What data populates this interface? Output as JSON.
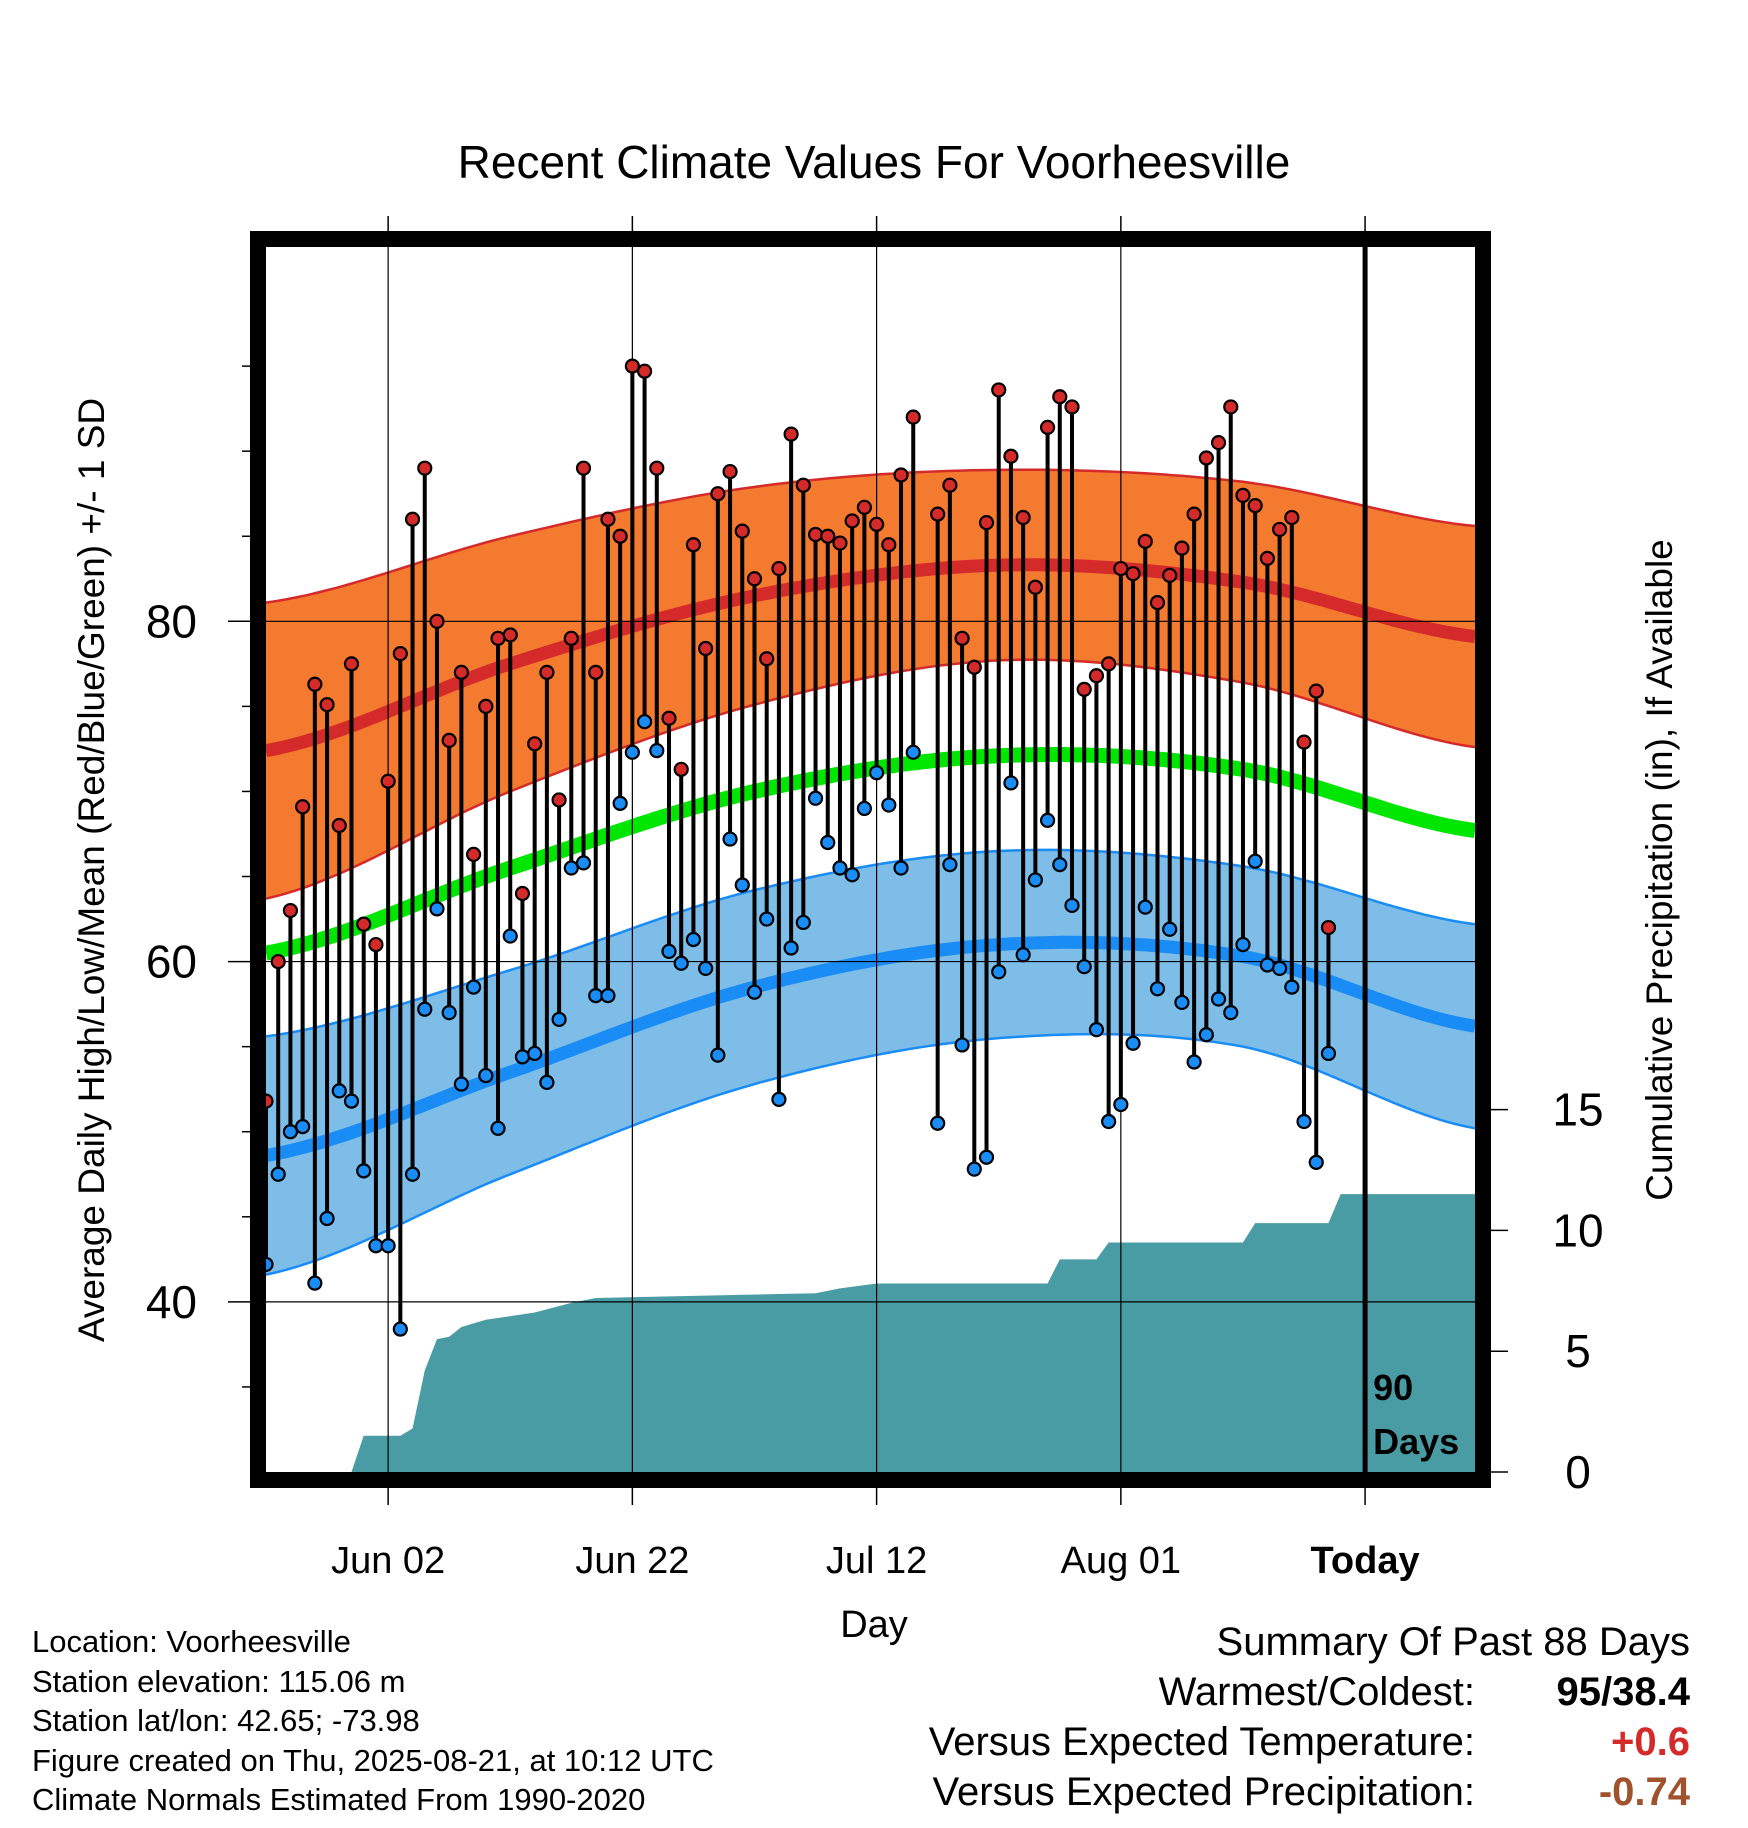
{
  "chart_data": {
    "type": "line",
    "title": "Recent Climate Values For Voorheesville",
    "xlabel": "Day",
    "ylabel": "Average Daily High/Low/Mean (Red/Blue/Green) +/- 1 SD",
    "y2label": "Cumulative Precipitation (in), If Available",
    "x_ticks": [
      {
        "date": "2025-06-02",
        "label": "Jun 02"
      },
      {
        "date": "2025-06-22",
        "label": "Jun 22"
      },
      {
        "date": "2025-07-12",
        "label": "Jul 12"
      },
      {
        "date": "2025-08-01",
        "label": "Aug 01"
      },
      {
        "date": "2025-08-21",
        "label": "Today"
      }
    ],
    "xlim": [
      "2025-05-23",
      "2025-08-30"
    ],
    "ylim": [
      30,
      102
    ],
    "y_ticks": [
      40,
      60,
      80
    ],
    "y2_ticks": [
      0,
      5,
      10,
      15
    ],
    "y2lim": [
      0,
      50.7
    ],
    "today_date": "2025-08-21",
    "window_label": "90 Days",
    "grid": true,
    "colors": {
      "high_band": "#f47a2f",
      "high_mean": "#d42a2a",
      "low_band": "#7dbde8",
      "low_mean": "#1a8cf5",
      "mean_line": "#00e600",
      "precip": "#4a9ca4",
      "high_dot": "#d42a2a",
      "low_dot": "#1a8cf5"
    },
    "normals": {
      "dates": [
        "2025-05-23",
        "2025-06-12",
        "2025-07-02",
        "2025-07-22",
        "2025-08-11",
        "2025-08-30"
      ],
      "high_mean": [
        72.4,
        77.5,
        81.5,
        83.3,
        82.3,
        79.1
      ],
      "high_sd": [
        8.7,
        7.5,
        6.4,
        5.6,
        5.9,
        6.5
      ],
      "low_mean": [
        48.6,
        53.5,
        58.5,
        61.0,
        60.3,
        56.2
      ],
      "low_sd": [
        7.0,
        6.0,
        5.7,
        5.5,
        5.3,
        6.0
      ],
      "mean": [
        60.5,
        65.5,
        70.0,
        72.1,
        71.3,
        67.7
      ]
    },
    "series": [
      {
        "name": "High",
        "dates": [
          "2025-05-23",
          "2025-05-24",
          "2025-05-25",
          "2025-05-26",
          "2025-05-27",
          "2025-05-28",
          "2025-05-29",
          "2025-05-30",
          "2025-05-31",
          "2025-06-01",
          "2025-06-02",
          "2025-06-03",
          "2025-06-04",
          "2025-06-05",
          "2025-06-06",
          "2025-06-07",
          "2025-06-08",
          "2025-06-09",
          "2025-06-10",
          "2025-06-11",
          "2025-06-12",
          "2025-06-13",
          "2025-06-14",
          "2025-06-15",
          "2025-06-16",
          "2025-06-17",
          "2025-06-18",
          "2025-06-19",
          "2025-06-20",
          "2025-06-21",
          "2025-06-22",
          "2025-06-23",
          "2025-06-24",
          "2025-06-25",
          "2025-06-26",
          "2025-06-27",
          "2025-06-28",
          "2025-06-29",
          "2025-06-30",
          "2025-07-01",
          "2025-07-02",
          "2025-07-03",
          "2025-07-04",
          "2025-07-05",
          "2025-07-06",
          "2025-07-07",
          "2025-07-08",
          "2025-07-09",
          "2025-07-10",
          "2025-07-11",
          "2025-07-12",
          "2025-07-13",
          "2025-07-14",
          "2025-07-15",
          "2025-07-17",
          "2025-07-18",
          "2025-07-19",
          "2025-07-20",
          "2025-07-21",
          "2025-07-22",
          "2025-07-23",
          "2025-07-24",
          "2025-07-25",
          "2025-07-26",
          "2025-07-27",
          "2025-07-28",
          "2025-07-29",
          "2025-07-30",
          "2025-07-31",
          "2025-08-01",
          "2025-08-02",
          "2025-08-03",
          "2025-08-04",
          "2025-08-05",
          "2025-08-06",
          "2025-08-07",
          "2025-08-08",
          "2025-08-09",
          "2025-08-10",
          "2025-08-11",
          "2025-08-12",
          "2025-08-13",
          "2025-08-14",
          "2025-08-15",
          "2025-08-16",
          "2025-08-17",
          "2025-08-18",
          "2025-08-19",
          "2025-08-20"
        ],
        "values": [
          51.8,
          60.0,
          63.0,
          69.1,
          76.3,
          75.1,
          68.0,
          77.5,
          62.2,
          61.0,
          70.6,
          78.1,
          86.0,
          89.0,
          80.0,
          73.0,
          77.0,
          66.3,
          75.0,
          79.0,
          79.2,
          64.0,
          72.8,
          77.0,
          69.5,
          79.0,
          89.0,
          77.0,
          86.0,
          85.0,
          95.0,
          94.7,
          89.0,
          74.3,
          71.3,
          84.5,
          78.4,
          87.5,
          88.8,
          85.3,
          82.5,
          77.8,
          83.1,
          91.0,
          88.0,
          85.1,
          85.0,
          84.6,
          85.9,
          86.7,
          85.7,
          84.5,
          88.6,
          92.0,
          86.3,
          88.0,
          79.0,
          77.3,
          85.8,
          93.6,
          89.7,
          86.1,
          82.0,
          91.4,
          93.2,
          92.6,
          76.0,
          76.8,
          77.5,
          83.1,
          82.8,
          84.7,
          81.1,
          82.7,
          84.3,
          86.3,
          89.6,
          90.5,
          92.6,
          87.4,
          86.8,
          83.7,
          85.4,
          86.1,
          72.9,
          75.9,
          62.0,
          null,
          null
        ]
      },
      {
        "name": "Low",
        "dates": [
          "2025-05-23",
          "2025-05-24",
          "2025-05-25",
          "2025-05-26",
          "2025-05-27",
          "2025-05-28",
          "2025-05-29",
          "2025-05-30",
          "2025-05-31",
          "2025-06-01",
          "2025-06-02",
          "2025-06-03",
          "2025-06-04",
          "2025-06-05",
          "2025-06-06",
          "2025-06-07",
          "2025-06-08",
          "2025-06-09",
          "2025-06-10",
          "2025-06-11",
          "2025-06-12",
          "2025-06-13",
          "2025-06-14",
          "2025-06-15",
          "2025-06-16",
          "2025-06-17",
          "2025-06-18",
          "2025-06-19",
          "2025-06-20",
          "2025-06-21",
          "2025-06-22",
          "2025-06-23",
          "2025-06-24",
          "2025-06-25",
          "2025-06-26",
          "2025-06-27",
          "2025-06-28",
          "2025-06-29",
          "2025-06-30",
          "2025-07-01",
          "2025-07-02",
          "2025-07-03",
          "2025-07-04",
          "2025-07-05",
          "2025-07-06",
          "2025-07-07",
          "2025-07-08",
          "2025-07-09",
          "2025-07-10",
          "2025-07-11",
          "2025-07-12",
          "2025-07-13",
          "2025-07-14",
          "2025-07-15",
          "2025-07-17",
          "2025-07-18",
          "2025-07-19",
          "2025-07-20",
          "2025-07-21",
          "2025-07-22",
          "2025-07-23",
          "2025-07-24",
          "2025-07-25",
          "2025-07-26",
          "2025-07-27",
          "2025-07-28",
          "2025-07-29",
          "2025-07-30",
          "2025-07-31",
          "2025-08-01",
          "2025-08-02",
          "2025-08-03",
          "2025-08-04",
          "2025-08-05",
          "2025-08-06",
          "2025-08-07",
          "2025-08-08",
          "2025-08-09",
          "2025-08-10",
          "2025-08-11",
          "2025-08-12",
          "2025-08-13",
          "2025-08-14",
          "2025-08-15",
          "2025-08-16",
          "2025-08-17",
          "2025-08-18",
          "2025-08-19",
          "2025-08-20"
        ],
        "values": [
          42.2,
          47.5,
          50.0,
          50.3,
          41.1,
          44.9,
          52.4,
          51.8,
          47.7,
          43.3,
          43.3,
          38.4,
          47.5,
          57.2,
          63.1,
          57.0,
          52.8,
          58.5,
          53.3,
          50.2,
          61.5,
          54.4,
          54.6,
          52.9,
          56.6,
          65.5,
          65.8,
          58.0,
          58.0,
          69.3,
          72.3,
          74.1,
          72.4,
          60.6,
          59.9,
          61.3,
          59.6,
          54.5,
          67.2,
          64.5,
          58.2,
          62.5,
          51.9,
          60.8,
          62.3,
          69.6,
          67.0,
          65.5,
          65.1,
          69.0,
          71.1,
          69.2,
          65.5,
          72.3,
          50.5,
          65.7,
          55.1,
          47.8,
          48.5,
          59.4,
          70.5,
          60.4,
          64.8,
          68.3,
          65.7,
          63.3,
          59.7,
          56.0,
          50.6,
          51.6,
          55.2,
          63.2,
          58.4,
          61.9,
          57.6,
          54.1,
          55.7,
          57.8,
          57.0,
          61.0,
          65.9,
          59.8,
          59.6,
          58.5,
          50.6,
          48.2,
          54.6,
          null,
          null
        ]
      }
    ],
    "precip": {
      "dates": [
        "2025-05-23",
        "2025-05-30",
        "2025-05-31",
        "2025-06-03",
        "2025-06-04",
        "2025-06-05",
        "2025-06-06",
        "2025-06-07",
        "2025-06-08",
        "2025-06-10",
        "2025-06-14",
        "2025-06-17",
        "2025-06-19",
        "2025-07-07",
        "2025-07-09",
        "2025-07-12",
        "2025-07-26",
        "2025-07-27",
        "2025-07-30",
        "2025-07-31",
        "2025-08-11",
        "2025-08-12",
        "2025-08-18",
        "2025-08-19",
        "2025-08-30"
      ],
      "values": [
        0.0,
        0.0,
        1.5,
        1.5,
        1.8,
        4.2,
        5.5,
        5.6,
        6.0,
        6.3,
        6.6,
        7.0,
        7.2,
        7.4,
        7.6,
        7.8,
        7.8,
        8.8,
        8.8,
        9.5,
        9.5,
        10.3,
        10.3,
        11.5,
        11.5
      ]
    }
  },
  "info": {
    "location": "Location: Voorheesville",
    "elevation": "Station elevation: 115.06 m",
    "latlon": "Station lat/lon: 42.65; -73.98",
    "created": "Figure created on Thu, 2025-08-21, at 10:12 UTC",
    "normals": "Climate Normals Estimated From 1990-2020"
  },
  "summary": {
    "heading": "Summary Of Past 88 Days",
    "warm_label": "Warmest/Coldest:",
    "warm_value": "95/38.4",
    "temp_label": "Versus Expected Temperature:",
    "temp_value": "+0.6",
    "temp_color": "#d42a2a",
    "precip_label": "Versus Expected Precipitation:",
    "precip_value": "-0.74",
    "precip_color": "#a0522d"
  }
}
